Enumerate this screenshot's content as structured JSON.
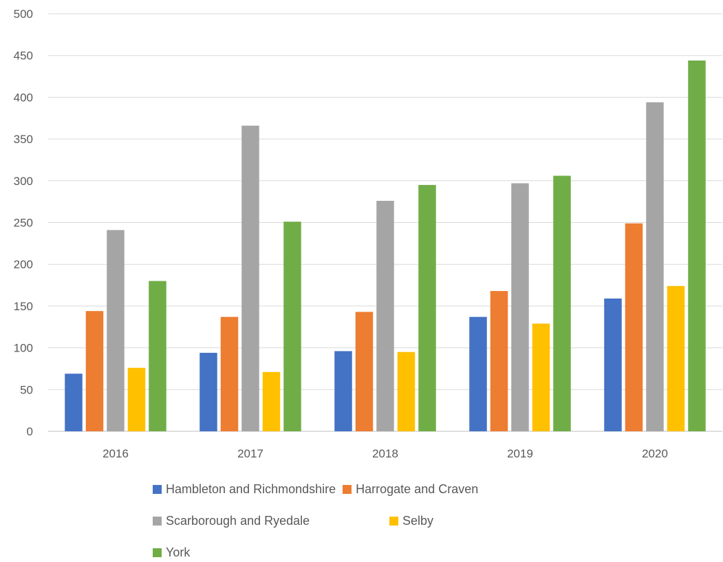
{
  "chart_data": {
    "type": "bar",
    "title": "",
    "xlabel": "",
    "ylabel": "",
    "categories": [
      "2016",
      "2017",
      "2018",
      "2019",
      "2020"
    ],
    "ylim": [
      0,
      500
    ],
    "yticks": [
      "0",
      "50",
      "100",
      "150",
      "200",
      "250",
      "300",
      "350",
      "400",
      "450",
      "500"
    ],
    "grid": true,
    "legend_position": "bottom",
    "series": [
      {
        "name": "Hambleton and Richmondshire",
        "color": "#4472C4",
        "values": [
          69,
          94,
          96,
          137,
          159
        ]
      },
      {
        "name": "Harrogate and Craven",
        "color": "#ED7D31",
        "values": [
          144,
          137,
          143,
          168,
          249
        ]
      },
      {
        "name": "Scarborough and Ryedale",
        "color": "#A5A5A5",
        "values": [
          241,
          366,
          276,
          297,
          394
        ]
      },
      {
        "name": "Selby",
        "color": "#FFC000",
        "values": [
          76,
          71,
          95,
          129,
          174
        ]
      },
      {
        "name": "York",
        "color": "#70AD47",
        "values": [
          180,
          251,
          295,
          306,
          444
        ]
      }
    ]
  }
}
